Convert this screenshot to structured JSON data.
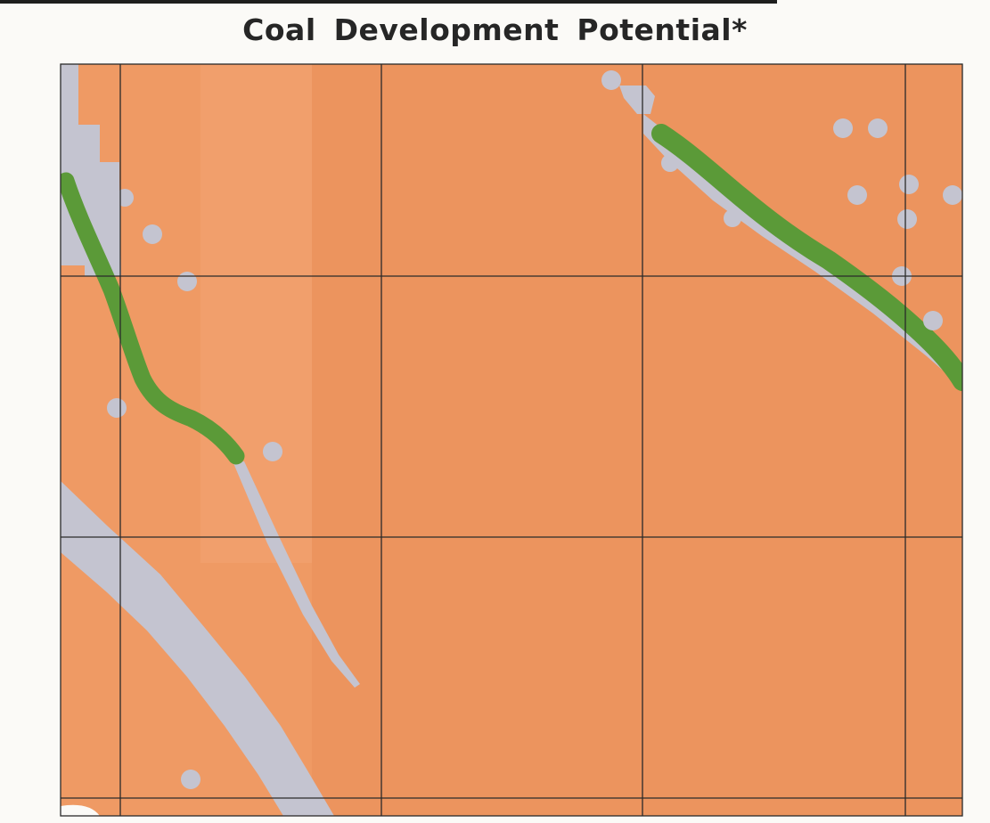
{
  "header": {
    "title": "Coal Development Potential*"
  },
  "map": {
    "colors": {
      "land_orange": "#ef9a64",
      "land_orange_band": "#e88e58",
      "gray_area": "#c4c4d0",
      "coal_outcrop_green": "#5b9a38",
      "grid_line": "#2a2a2a"
    },
    "icons": [
      "gray-dot-icon"
    ],
    "grid": {
      "columns": 4,
      "rows": 3
    }
  }
}
